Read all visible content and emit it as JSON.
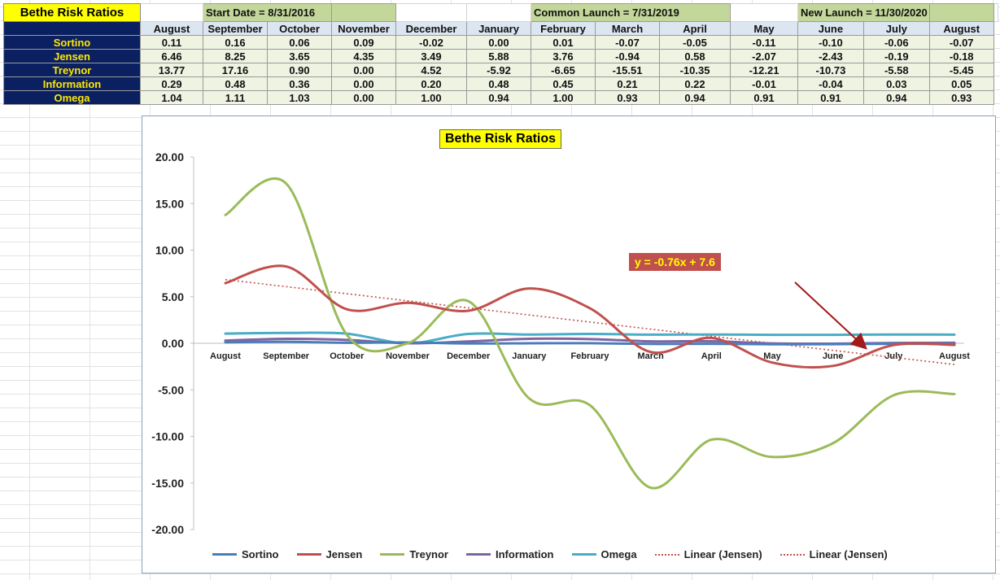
{
  "sheet": {
    "title": "Bethe Risk Ratios",
    "start_date": "Start Date = 8/31/2016",
    "common_launch": "Common Launch = 7/31/2019",
    "new_launch": "New Launch = 11/30/2020",
    "months": [
      "August",
      "September",
      "October",
      "November",
      "December",
      "January",
      "February",
      "March",
      "April",
      "May",
      "June",
      "July",
      "August"
    ],
    "rows": [
      {
        "label": "Sortino",
        "values": [
          "0.11",
          "0.16",
          "0.06",
          "0.09",
          "-0.02",
          "0.00",
          "0.01",
          "-0.07",
          "-0.05",
          "-0.11",
          "-0.10",
          "-0.06",
          "-0.07"
        ]
      },
      {
        "label": "Jensen",
        "values": [
          "6.46",
          "8.25",
          "3.65",
          "4.35",
          "3.49",
          "5.88",
          "3.76",
          "-0.94",
          "0.58",
          "-2.07",
          "-2.43",
          "-0.19",
          "-0.18"
        ]
      },
      {
        "label": "Treynor",
        "values": [
          "13.77",
          "17.16",
          "0.90",
          "0.00",
          "4.52",
          "-5.92",
          "-6.65",
          "-15.51",
          "-10.35",
          "-12.21",
          "-10.73",
          "-5.58",
          "-5.45"
        ]
      },
      {
        "label": "Information",
        "values": [
          "0.29",
          "0.48",
          "0.36",
          "0.00",
          "0.20",
          "0.48",
          "0.45",
          "0.21",
          "0.22",
          "-0.01",
          "-0.04",
          "0.03",
          "0.05"
        ]
      },
      {
        "label": "Omega",
        "values": [
          "1.04",
          "1.11",
          "1.03",
          "0.00",
          "1.00",
          "0.94",
          "1.00",
          "0.93",
          "0.94",
          "0.91",
          "0.91",
          "0.94",
          "0.93"
        ]
      }
    ]
  },
  "chart_data": {
    "type": "line",
    "title": "Bethe Risk Ratios",
    "categories": [
      "August",
      "September",
      "October",
      "November",
      "December",
      "January",
      "February",
      "March",
      "April",
      "May",
      "June",
      "July",
      "August"
    ],
    "ylim": [
      -20,
      20
    ],
    "yticks": [
      "20.00",
      "15.00",
      "10.00",
      "5.00",
      "0.00",
      "-5.00",
      "-10.00",
      "-15.00",
      "-20.00"
    ],
    "smooth": true,
    "grid": false,
    "legend_position": "bottom",
    "series": [
      {
        "name": "Sortino",
        "color": "#4a7ebb",
        "values": [
          0.11,
          0.16,
          0.06,
          0.09,
          -0.02,
          0.0,
          0.01,
          -0.07,
          -0.05,
          -0.11,
          -0.1,
          -0.06,
          -0.07
        ]
      },
      {
        "name": "Jensen",
        "color": "#c0504d",
        "values": [
          6.46,
          8.25,
          3.65,
          4.35,
          3.49,
          5.88,
          3.76,
          -0.94,
          0.58,
          -2.07,
          -2.43,
          -0.19,
          -0.18
        ]
      },
      {
        "name": "Treynor",
        "color": "#9bbb59",
        "values": [
          13.77,
          17.16,
          0.9,
          0.0,
          4.52,
          -5.92,
          -6.65,
          -15.51,
          -10.35,
          -12.21,
          -10.73,
          -5.58,
          -5.45
        ]
      },
      {
        "name": "Information",
        "color": "#7f64a2",
        "values": [
          0.29,
          0.48,
          0.36,
          0.0,
          0.2,
          0.48,
          0.45,
          0.21,
          0.22,
          -0.01,
          -0.04,
          0.03,
          0.05
        ]
      },
      {
        "name": "Omega",
        "color": "#4bacc6",
        "values": [
          1.04,
          1.11,
          1.03,
          0.0,
          1.0,
          0.94,
          1.0,
          0.93,
          0.94,
          0.91,
          0.91,
          0.94,
          0.93
        ]
      }
    ],
    "trendlines": [
      {
        "name": "Linear (Jensen)",
        "color": "#c0504d",
        "slope": -0.76,
        "intercept": 7.6,
        "style": "dotted"
      },
      {
        "name": "Linear (Jensen)",
        "color": "#c0504d",
        "slope": -0.76,
        "intercept": 7.6,
        "style": "dotted"
      }
    ],
    "annotation": {
      "text": "y = -0.76x + 7.6",
      "color": "#c0504d",
      "text_color": "#ffff00"
    },
    "arrow_color": "#a01a1a"
  }
}
